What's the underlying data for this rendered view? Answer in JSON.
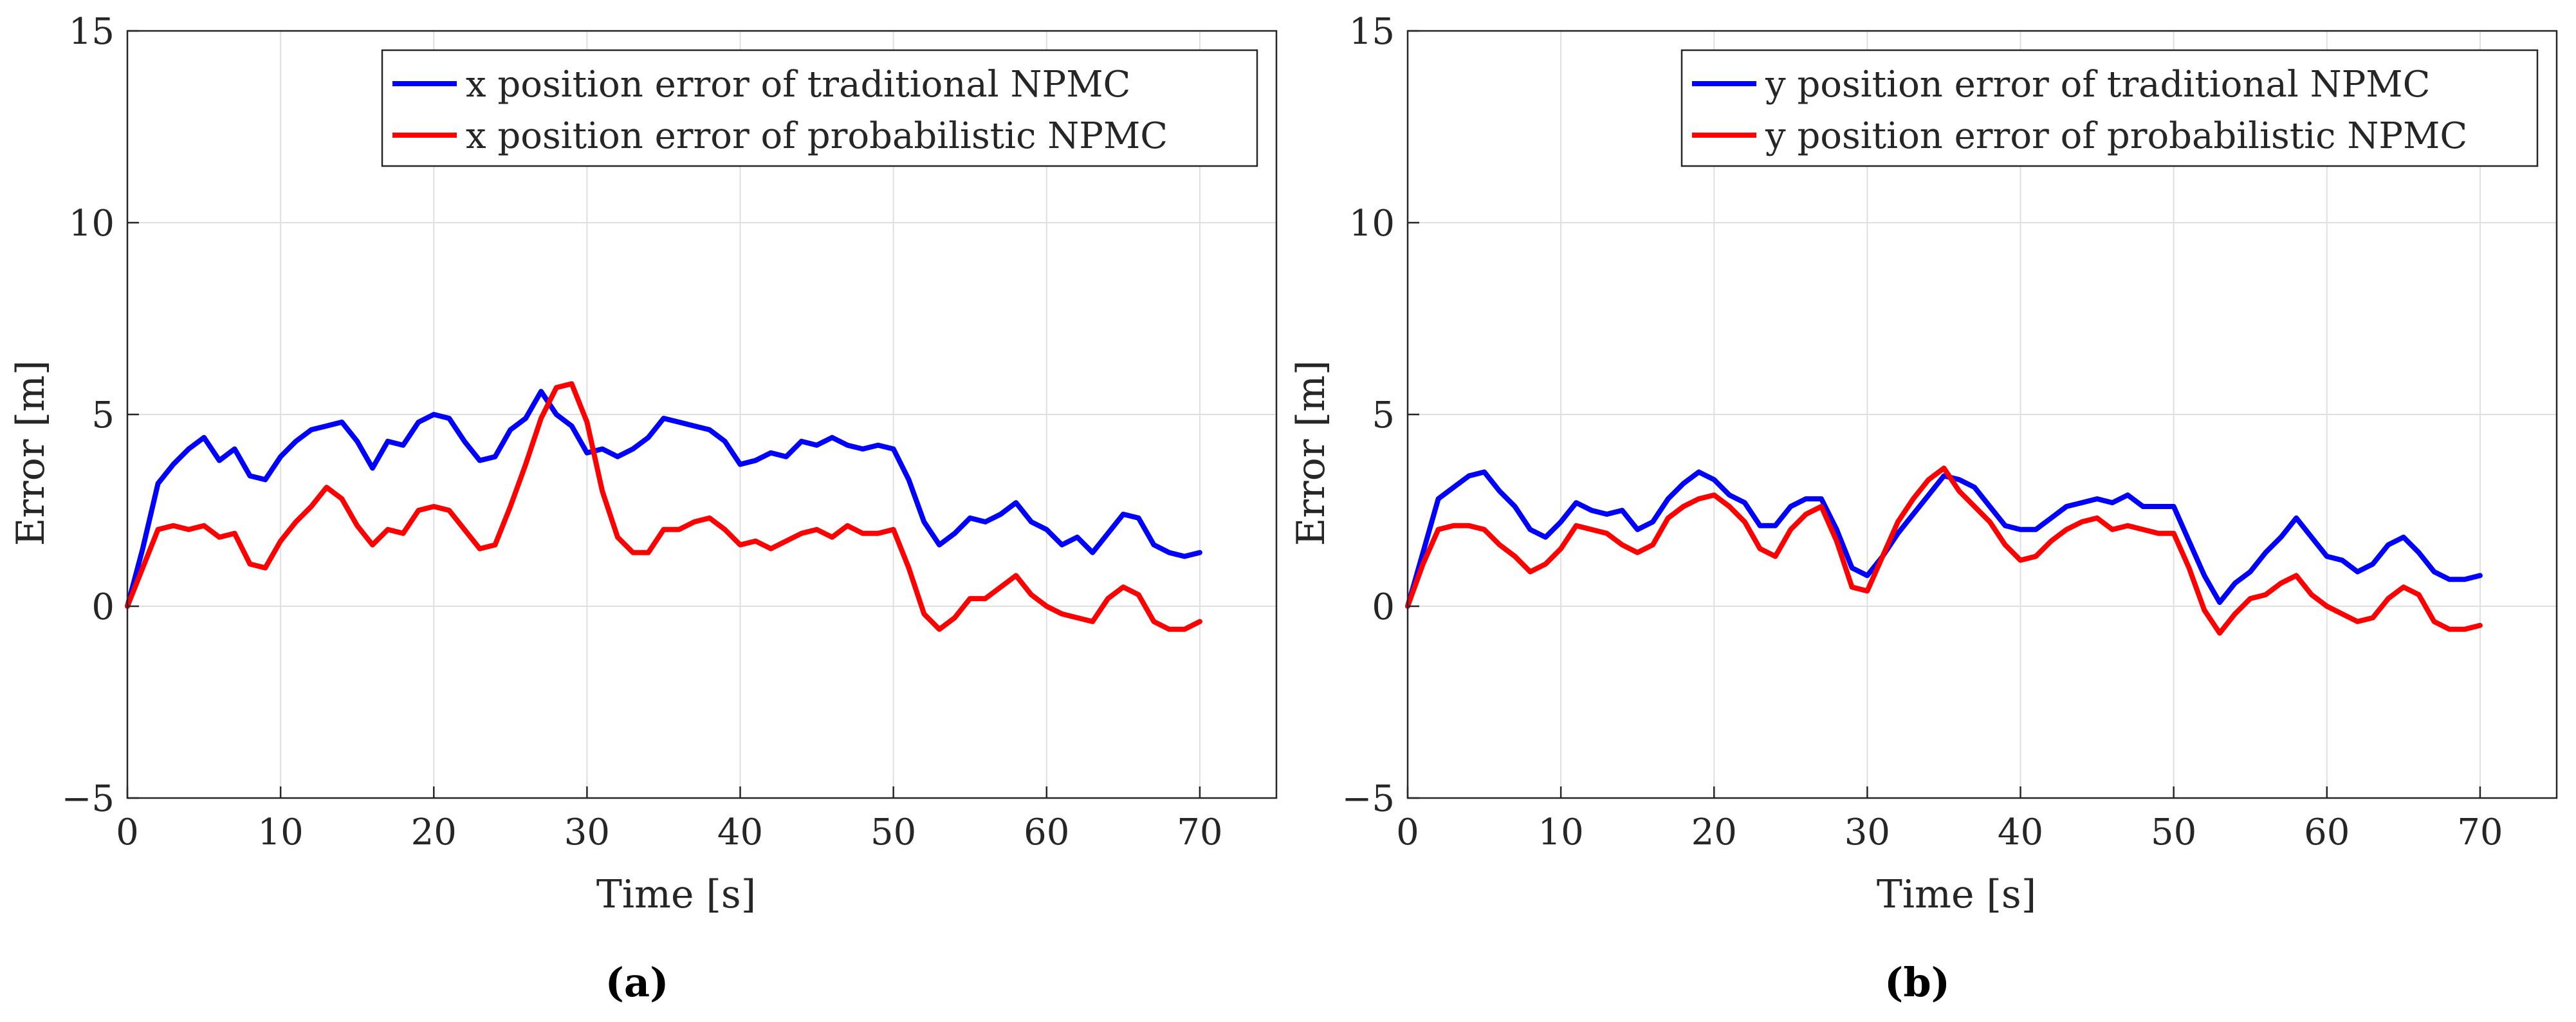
{
  "chart_data": [
    {
      "type": "line",
      "title": "",
      "caption": "(a)",
      "xlabel": "Time [s]",
      "ylabel": "Error [m]",
      "xlim": [
        0,
        75
      ],
      "ylim": [
        -5,
        15
      ],
      "xticks": [
        0,
        10,
        20,
        30,
        40,
        50,
        60,
        70
      ],
      "yticks": [
        -5,
        0,
        5,
        10,
        15
      ],
      "xtick_labels": [
        "0",
        "10",
        "20",
        "30",
        "40",
        "50",
        "60",
        "70"
      ],
      "ytick_labels": [
        "−5",
        "0",
        "5",
        "10",
        "15"
      ],
      "grid": true,
      "legend_position": "top-right",
      "series": [
        {
          "name": "x position error of traditional NPMC",
          "color": "#0000ff",
          "x": [
            0,
            1,
            2,
            3,
            4,
            5,
            6,
            7,
            8,
            9,
            10,
            11,
            12,
            13,
            14,
            15,
            16,
            17,
            18,
            19,
            20,
            21,
            22,
            23,
            24,
            25,
            26,
            27,
            28,
            29,
            30,
            31,
            32,
            33,
            34,
            35,
            36,
            37,
            38,
            39,
            40,
            41,
            42,
            43,
            44,
            45,
            46,
            47,
            48,
            49,
            50,
            51,
            52,
            53,
            54,
            55,
            56,
            57,
            58,
            59,
            60,
            61,
            62,
            63,
            64,
            65,
            66,
            67,
            68,
            69,
            70
          ],
          "y": [
            0,
            1.5,
            3.2,
            3.7,
            4.1,
            4.4,
            3.8,
            4.1,
            3.4,
            3.3,
            3.9,
            4.3,
            4.6,
            4.7,
            4.8,
            4.3,
            3.6,
            4.3,
            4.2,
            4.8,
            5.0,
            4.9,
            4.3,
            3.8,
            3.9,
            4.6,
            4.9,
            5.6,
            5.0,
            4.7,
            4.0,
            4.1,
            3.9,
            4.1,
            4.4,
            4.9,
            4.8,
            4.7,
            4.6,
            4.3,
            3.7,
            3.8,
            4.0,
            3.9,
            4.3,
            4.2,
            4.4,
            4.2,
            4.1,
            4.2,
            4.1,
            3.3,
            2.2,
            1.6,
            1.9,
            2.3,
            2.2,
            2.4,
            2.7,
            2.2,
            2.0,
            1.6,
            1.8,
            1.4,
            1.9,
            2.4,
            2.3,
            1.6,
            1.4,
            1.3,
            1.4
          ]
        },
        {
          "name": "x position error of probabilistic NPMC",
          "color": "#ff0000",
          "x": [
            0,
            1,
            2,
            3,
            4,
            5,
            6,
            7,
            8,
            9,
            10,
            11,
            12,
            13,
            14,
            15,
            16,
            17,
            18,
            19,
            20,
            21,
            22,
            23,
            24,
            25,
            26,
            27,
            28,
            29,
            30,
            31,
            32,
            33,
            34,
            35,
            36,
            37,
            38,
            39,
            40,
            41,
            42,
            43,
            44,
            45,
            46,
            47,
            48,
            49,
            50,
            51,
            52,
            53,
            54,
            55,
            56,
            57,
            58,
            59,
            60,
            61,
            62,
            63,
            64,
            65,
            66,
            67,
            68,
            69,
            70
          ],
          "y": [
            0,
            1.0,
            2.0,
            2.1,
            2.0,
            2.1,
            1.8,
            1.9,
            1.1,
            1.0,
            1.7,
            2.2,
            2.6,
            3.1,
            2.8,
            2.1,
            1.6,
            2.0,
            1.9,
            2.5,
            2.6,
            2.5,
            2.0,
            1.5,
            1.6,
            2.6,
            3.7,
            4.9,
            5.7,
            5.8,
            4.8,
            3.0,
            1.8,
            1.4,
            1.4,
            2.0,
            2.0,
            2.2,
            2.3,
            2.0,
            1.6,
            1.7,
            1.5,
            1.7,
            1.9,
            2.0,
            1.8,
            2.1,
            1.9,
            1.9,
            2.0,
            1.0,
            -0.2,
            -0.6,
            -0.3,
            0.2,
            0.2,
            0.5,
            0.8,
            0.3,
            0.0,
            -0.2,
            -0.3,
            -0.4,
            0.2,
            0.5,
            0.3,
            -0.4,
            -0.6,
            -0.6,
            -0.4
          ]
        }
      ]
    },
    {
      "type": "line",
      "title": "",
      "caption": "(b)",
      "xlabel": "Time [s]",
      "ylabel": "Error [m]",
      "xlim": [
        0,
        75
      ],
      "ylim": [
        -5,
        15
      ],
      "xticks": [
        0,
        10,
        20,
        30,
        40,
        50,
        60,
        70
      ],
      "yticks": [
        -5,
        0,
        5,
        10,
        15
      ],
      "xtick_labels": [
        "0",
        "10",
        "20",
        "30",
        "40",
        "50",
        "60",
        "70"
      ],
      "ytick_labels": [
        "−5",
        "0",
        "5",
        "10",
        "15"
      ],
      "grid": true,
      "legend_position": "top-right",
      "series": [
        {
          "name": "y position error of traditional NPMC",
          "color": "#0000ff",
          "x": [
            0,
            1,
            2,
            3,
            4,
            5,
            6,
            7,
            8,
            9,
            10,
            11,
            12,
            13,
            14,
            15,
            16,
            17,
            18,
            19,
            20,
            21,
            22,
            23,
            24,
            25,
            26,
            27,
            28,
            29,
            30,
            31,
            32,
            33,
            34,
            35,
            36,
            37,
            38,
            39,
            40,
            41,
            42,
            43,
            44,
            45,
            46,
            47,
            48,
            49,
            50,
            51,
            52,
            53,
            54,
            55,
            56,
            57,
            58,
            59,
            60,
            61,
            62,
            63,
            64,
            65,
            66,
            67,
            68,
            69,
            70
          ],
          "y": [
            0,
            1.4,
            2.8,
            3.1,
            3.4,
            3.5,
            3.0,
            2.6,
            2.0,
            1.8,
            2.2,
            2.7,
            2.5,
            2.4,
            2.5,
            2.0,
            2.2,
            2.8,
            3.2,
            3.5,
            3.3,
            2.9,
            2.7,
            2.1,
            2.1,
            2.6,
            2.8,
            2.8,
            2.0,
            1.0,
            0.8,
            1.3,
            1.9,
            2.4,
            2.9,
            3.4,
            3.3,
            3.1,
            2.6,
            2.1,
            2.0,
            2.0,
            2.3,
            2.6,
            2.7,
            2.8,
            2.7,
            2.9,
            2.6,
            2.6,
            2.6,
            1.7,
            0.8,
            0.1,
            0.6,
            0.9,
            1.4,
            1.8,
            2.3,
            1.8,
            1.3,
            1.2,
            0.9,
            1.1,
            1.6,
            1.8,
            1.4,
            0.9,
            0.7,
            0.7,
            0.8
          ]
        },
        {
          "name": "y position error of probabilistic NPMC",
          "color": "#ff0000",
          "x": [
            0,
            1,
            2,
            3,
            4,
            5,
            6,
            7,
            8,
            9,
            10,
            11,
            12,
            13,
            14,
            15,
            16,
            17,
            18,
            19,
            20,
            21,
            22,
            23,
            24,
            25,
            26,
            27,
            28,
            29,
            30,
            31,
            32,
            33,
            34,
            35,
            36,
            37,
            38,
            39,
            40,
            41,
            42,
            43,
            44,
            45,
            46,
            47,
            48,
            49,
            50,
            51,
            52,
            53,
            54,
            55,
            56,
            57,
            58,
            59,
            60,
            61,
            62,
            63,
            64,
            65,
            66,
            67,
            68,
            69,
            70
          ],
          "y": [
            0,
            1.1,
            2.0,
            2.1,
            2.1,
            2.0,
            1.6,
            1.3,
            0.9,
            1.1,
            1.5,
            2.1,
            2.0,
            1.9,
            1.6,
            1.4,
            1.6,
            2.3,
            2.6,
            2.8,
            2.9,
            2.6,
            2.2,
            1.5,
            1.3,
            2.0,
            2.4,
            2.6,
            1.7,
            0.5,
            0.4,
            1.3,
            2.2,
            2.8,
            3.3,
            3.6,
            3.0,
            2.6,
            2.2,
            1.6,
            1.2,
            1.3,
            1.7,
            2.0,
            2.2,
            2.3,
            2.0,
            2.1,
            2.0,
            1.9,
            1.9,
            1.0,
            -0.1,
            -0.7,
            -0.2,
            0.2,
            0.3,
            0.6,
            0.8,
            0.3,
            0.0,
            -0.2,
            -0.4,
            -0.3,
            0.2,
            0.5,
            0.3,
            -0.4,
            -0.6,
            -0.6,
            -0.5
          ]
        }
      ]
    }
  ]
}
